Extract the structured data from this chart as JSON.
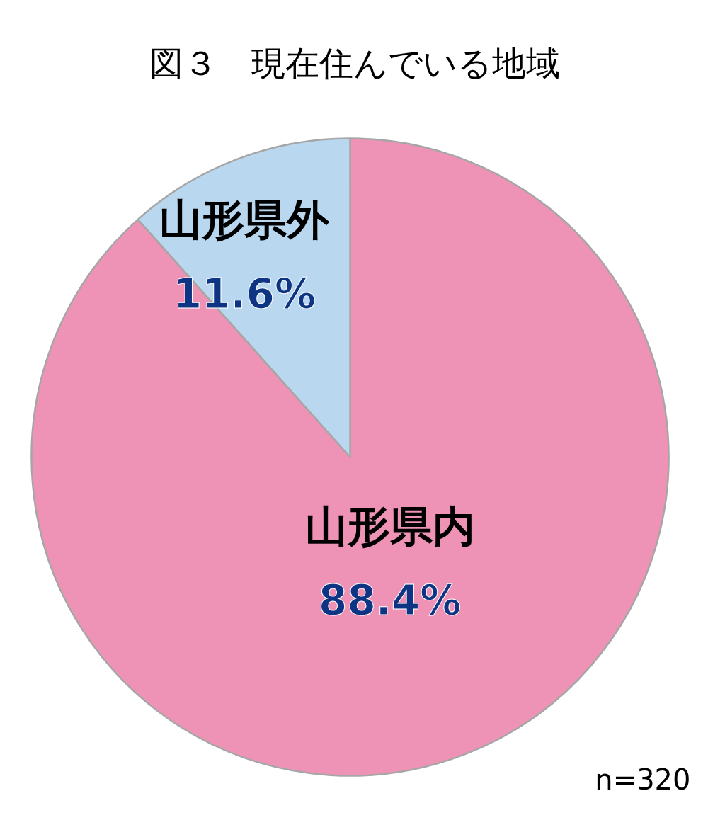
{
  "chart_data": {
    "type": "pie",
    "title": "図３　現在住んでいる地域",
    "categories": [
      "山形県内",
      "山形県外"
    ],
    "values": [
      88.4,
      11.6
    ],
    "colors": [
      "#ee93b6",
      "#b9d8f0"
    ],
    "value_labels": [
      "88.4%",
      "11.6%"
    ],
    "annotations": [
      "n=320"
    ]
  }
}
